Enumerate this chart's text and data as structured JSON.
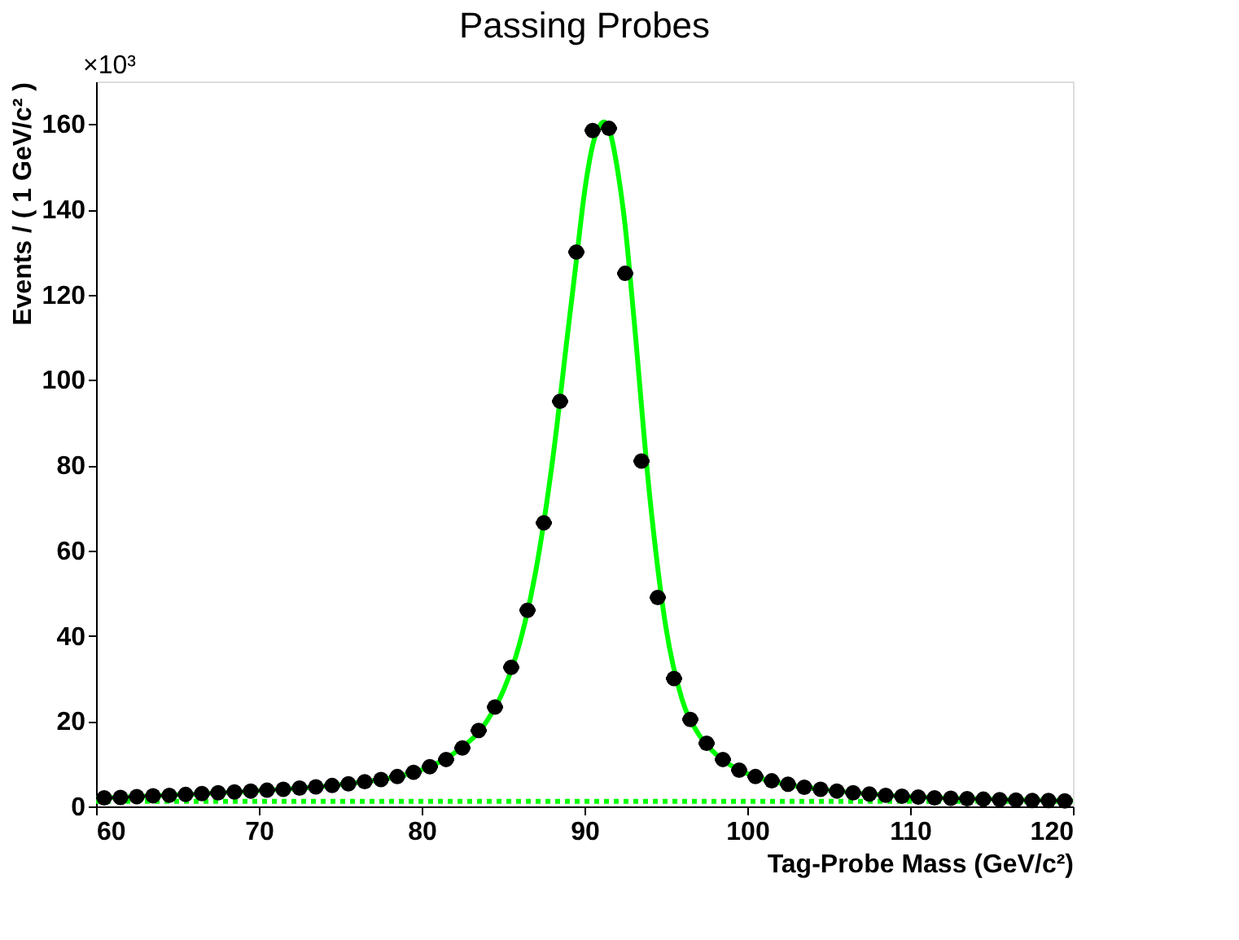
{
  "chart_data": {
    "type": "scatter",
    "title": "Passing Probes",
    "xlabel": "Tag-Probe Mass (GeV/c²)",
    "ylabel": "Events / ( 1 GeV/c² )",
    "annotations": [
      "×10³"
    ],
    "xlim": [
      60,
      120
    ],
    "xticks": [
      60,
      70,
      80,
      90,
      100,
      110,
      120
    ],
    "ylim": [
      0,
      170
    ],
    "yticks": [
      0,
      20,
      40,
      60,
      80,
      100,
      120,
      140,
      160
    ],
    "grid": false,
    "series": [
      {
        "type": "line",
        "color": "#00ff00",
        "line_style": "dotted",
        "marker": "none",
        "x": [
          60,
          120
        ],
        "values": [
          1.2,
          1.2
        ]
      },
      {
        "type": "line",
        "color": "#00ff00",
        "line_style": "solid",
        "marker": "none",
        "x": [
          60,
          65,
          70,
          75,
          80,
          82,
          84,
          85,
          86,
          87,
          88,
          89,
          89.5,
          90,
          90.5,
          91,
          91.2,
          91.5,
          92,
          92.5,
          93,
          94,
          95,
          96,
          97,
          98,
          100,
          102,
          105,
          110,
          115,
          120
        ],
        "values": [
          1.9,
          2.7,
          3.7,
          5.1,
          8.6,
          12.5,
          20,
          27,
          38,
          55,
          80,
          112,
          128,
          144,
          155,
          160,
          160.5,
          159,
          150,
          136,
          116,
          73,
          42,
          25,
          17,
          12.5,
          7.7,
          5.5,
          3.8,
          2.3,
          1.7,
          1.3
        ]
      },
      {
        "color": "#000000",
        "marker": "circle",
        "x": [
          60.5,
          61.5,
          62.5,
          63.5,
          64.5,
          65.5,
          66.5,
          67.5,
          68.5,
          69.5,
          70.5,
          71.5,
          72.5,
          73.5,
          74.5,
          75.5,
          76.5,
          77.5,
          78.5,
          79.5,
          80.5,
          81.5,
          82.5,
          83.5,
          84.5,
          85.5,
          86.5,
          87.5,
          88.5,
          89.5,
          90.5,
          91.5,
          92.5,
          93.5,
          94.5,
          95.5,
          96.5,
          97.5,
          98.5,
          99.5,
          100.5,
          101.5,
          102.5,
          103.5,
          104.5,
          105.5,
          106.5,
          107.5,
          108.5,
          109.5,
          110.5,
          111.5,
          112.5,
          113.5,
          114.5,
          115.5,
          116.5,
          117.5,
          118.5,
          119.5
        ],
        "values": [
          2.0,
          2.1,
          2.3,
          2.5,
          2.6,
          2.8,
          3.0,
          3.2,
          3.4,
          3.6,
          3.8,
          4.0,
          4.3,
          4.6,
          4.9,
          5.3,
          5.8,
          6.3,
          7.0,
          8.0,
          9.3,
          11.0,
          13.7,
          17.8,
          23.3,
          32.6,
          46,
          66.5,
          95,
          130,
          158.5,
          159,
          125,
          81,
          49,
          30,
          20.4,
          14.8,
          11,
          8.5,
          7,
          6,
          5.2,
          4.5,
          4,
          3.6,
          3.2,
          2.9,
          2.6,
          2.4,
          2.2,
          2.0,
          1.9,
          1.8,
          1.7,
          1.6,
          1.5,
          1.4,
          1.4,
          1.3
        ],
        "xerrors": [
          0.5,
          0.5,
          0.5,
          0.5,
          0.5,
          0.5,
          0.5,
          0.5,
          0.5,
          0.5,
          0.5,
          0.5,
          0.5,
          0.5,
          0.5,
          0.5,
          0.5,
          0.5,
          0.5,
          0.5,
          0.5,
          0.5,
          0.5,
          0.5,
          0.5,
          0.5,
          0.5,
          0.5,
          0.5,
          0.5,
          0.5,
          0.5,
          0.5,
          0.5,
          0.5,
          0.5,
          0.5,
          0.5,
          0.5,
          0.5,
          0.5,
          0.5,
          0.5,
          0.5,
          0.5,
          0.5,
          0.5,
          0.5,
          0.5,
          0.5,
          0.5,
          0.5,
          0.5,
          0.5,
          0.5,
          0.5,
          0.5,
          0.5,
          0.5,
          0.5
        ]
      }
    ]
  }
}
